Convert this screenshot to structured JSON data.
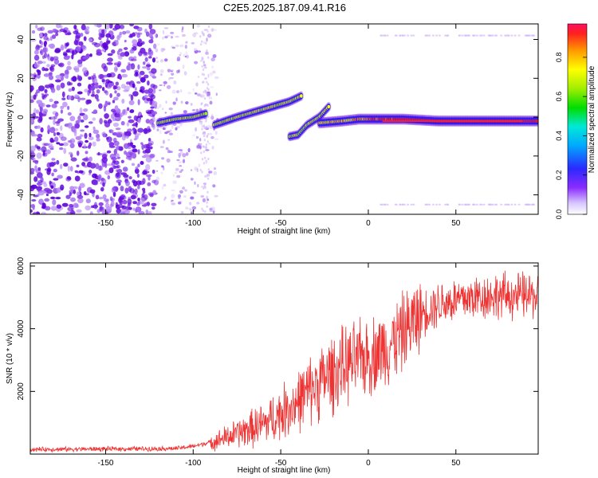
{
  "figure_title": "C2E5.2025.187.09.41.R16",
  "chart_data": [
    {
      "type": "heatmap",
      "title": "",
      "xlabel": "Height of straight line (km)",
      "ylabel": "Frequency (Hz)",
      "xlim": [
        -193,
        97
      ],
      "ylim": [
        -50,
        48
      ],
      "x_ticks": [
        -150,
        -100,
        -50,
        0,
        50
      ],
      "y_ticks": [
        -40,
        -20,
        0,
        20,
        40
      ],
      "colorbar": {
        "label": "Normalized spectral amplitude",
        "range": [
          0,
          0.97
        ],
        "ticks": [
          "0.0",
          "0.2",
          "0.4",
          "0.6",
          "0.8"
        ]
      },
      "ridge_segments": [
        {
          "x": [
            -120,
            -110,
            -100,
            -92
          ],
          "y": [
            -3,
            -1,
            0,
            2
          ]
        },
        {
          "x": [
            -88,
            -75,
            -60,
            -45,
            -38
          ],
          "y": [
            -4,
            0,
            4,
            8,
            11
          ]
        },
        {
          "x": [
            -45,
            -40,
            -35,
            -28,
            -22
          ],
          "y": [
            -10,
            -9,
            -4,
            0,
            6
          ]
        },
        {
          "x": [
            -28,
            -15,
            -5,
            5,
            20,
            40,
            60,
            80,
            97
          ],
          "y": [
            -3,
            -2,
            -1,
            -1,
            -1,
            -2,
            -2,
            -2,
            -2
          ]
        }
      ]
    },
    {
      "type": "line",
      "title": "",
      "xlabel": "Height of straight line (km)",
      "ylabel": "SNR (10 * v/v)",
      "xlim": [
        -193,
        97
      ],
      "ylim": [
        0,
        6100
      ],
      "x_ticks": [
        -150,
        -100,
        -50,
        0,
        50
      ],
      "y_ticks": [
        2000,
        4000,
        6000
      ],
      "color": "#ee3333",
      "trend": {
        "x": [
          -193,
          -160,
          -130,
          -110,
          -100,
          -90,
          -80,
          -70,
          -60,
          -50,
          -40,
          -30,
          -20,
          -10,
          0,
          10,
          20,
          30,
          40,
          50,
          60,
          70,
          80,
          97
        ],
        "y": [
          150,
          160,
          170,
          180,
          250,
          380,
          550,
          750,
          950,
          1300,
          1700,
          2200,
          2600,
          2900,
          3100,
          3400,
          3900,
          4500,
          4800,
          4900,
          5000,
          5050,
          5050,
          5050
        ]
      }
    }
  ],
  "colors": {
    "heatmap_scatter": "#6a10dd",
    "heatmap_ridge_core": "#ee1111",
    "snr_line": "#ee3333",
    "axis": "#000000"
  }
}
